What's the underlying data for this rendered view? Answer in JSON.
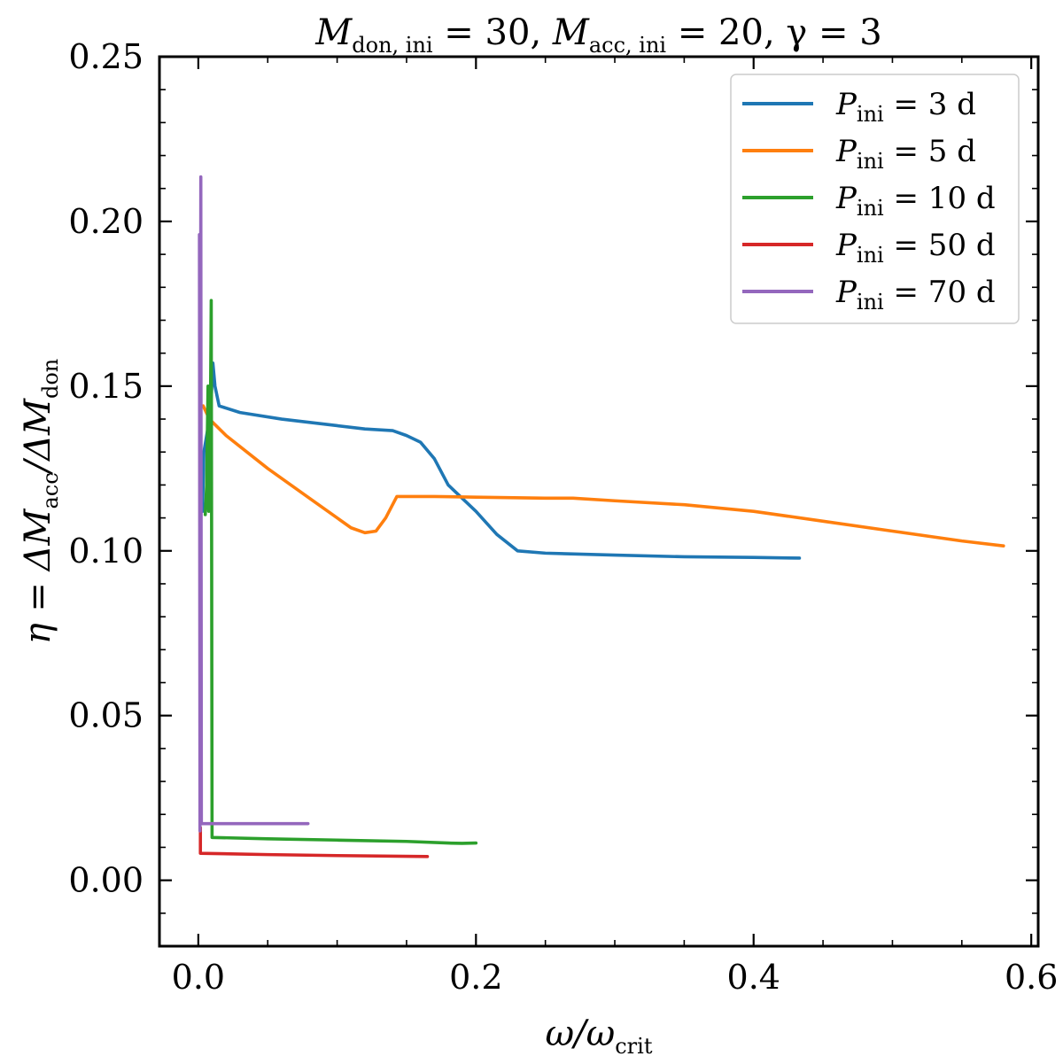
{
  "chart_data": {
    "type": "line",
    "title": {
      "mdon_symbol": "M",
      "mdon_sub": "don, ini",
      "mdon_value": " = 30, ",
      "macc_symbol": "M",
      "macc_sub": "acc, ini",
      "macc_value": " = 20, ",
      "gamma_text": "γ = 3"
    },
    "xlabel": {
      "prefix": "ω/ω",
      "sub": "crit"
    },
    "ylabel": {
      "part1": "η = ΔM",
      "sub1": "acc",
      "part2": "/ΔM",
      "sub2": "don"
    },
    "xlim": [
      -0.028,
      0.605
    ],
    "ylim": [
      -0.02,
      0.25
    ],
    "xticks": [
      {
        "value": 0.0,
        "label": "0.0"
      },
      {
        "value": 0.2,
        "label": "0.2"
      },
      {
        "value": 0.4,
        "label": "0.4"
      },
      {
        "value": 0.6,
        "label": "0.6"
      }
    ],
    "yticks": [
      {
        "value": 0.0,
        "label": "0.00"
      },
      {
        "value": 0.05,
        "label": "0.05"
      },
      {
        "value": 0.1,
        "label": "0.10"
      },
      {
        "value": 0.15,
        "label": "0.15"
      },
      {
        "value": 0.2,
        "label": "0.20"
      },
      {
        "value": 0.25,
        "label": "0.25"
      }
    ],
    "legend_position": "top-right",
    "series": [
      {
        "name": "P_ini = 3 d",
        "legend_symbol": "P",
        "legend_sub": "ini",
        "legend_value": " = 3 d",
        "color": "#1f77b4",
        "points": [
          [
            0.003,
            0.112
          ],
          [
            0.004,
            0.13
          ],
          [
            0.006,
            0.135
          ],
          [
            0.008,
            0.14
          ],
          [
            0.0095,
            0.148
          ],
          [
            0.0105,
            0.157
          ],
          [
            0.012,
            0.15
          ],
          [
            0.015,
            0.144
          ],
          [
            0.03,
            0.142
          ],
          [
            0.06,
            0.14
          ],
          [
            0.1,
            0.138
          ],
          [
            0.12,
            0.137
          ],
          [
            0.14,
            0.1365
          ],
          [
            0.15,
            0.135
          ],
          [
            0.16,
            0.133
          ],
          [
            0.17,
            0.128
          ],
          [
            0.18,
            0.12
          ],
          [
            0.2,
            0.112
          ],
          [
            0.215,
            0.105
          ],
          [
            0.23,
            0.1
          ],
          [
            0.25,
            0.0993
          ],
          [
            0.3,
            0.0987
          ],
          [
            0.35,
            0.0982
          ],
          [
            0.4,
            0.098
          ],
          [
            0.433,
            0.0978
          ]
        ]
      },
      {
        "name": "P_ini = 5 d",
        "legend_symbol": "P",
        "legend_sub": "ini",
        "legend_value": " = 5 d",
        "color": "#ff7f0e",
        "points": [
          [
            0.0035,
            0.144
          ],
          [
            0.008,
            0.14
          ],
          [
            0.02,
            0.135
          ],
          [
            0.05,
            0.125
          ],
          [
            0.08,
            0.116
          ],
          [
            0.1,
            0.11
          ],
          [
            0.11,
            0.107
          ],
          [
            0.12,
            0.1055
          ],
          [
            0.128,
            0.106
          ],
          [
            0.135,
            0.11
          ],
          [
            0.143,
            0.1165
          ],
          [
            0.17,
            0.1165
          ],
          [
            0.2,
            0.1163
          ],
          [
            0.25,
            0.116
          ],
          [
            0.27,
            0.116
          ],
          [
            0.3,
            0.1152
          ],
          [
            0.35,
            0.114
          ],
          [
            0.4,
            0.112
          ],
          [
            0.45,
            0.109
          ],
          [
            0.5,
            0.106
          ],
          [
            0.55,
            0.103
          ],
          [
            0.58,
            0.1015
          ]
        ]
      },
      {
        "name": "P_ini = 10 d",
        "legend_symbol": "P",
        "legend_sub": "ini",
        "legend_value": " = 10 d",
        "color": "#2ca02c",
        "points": [
          [
            0.005,
            0.111
          ],
          [
            0.006,
            0.12
          ],
          [
            0.007,
            0.15
          ],
          [
            0.0075,
            0.112
          ],
          [
            0.0085,
            0.13
          ],
          [
            0.009,
            0.158
          ],
          [
            0.0093,
            0.176
          ],
          [
            0.0096,
            0.1
          ],
          [
            0.0099,
            0.013
          ],
          [
            0.05,
            0.0126
          ],
          [
            0.1,
            0.0122
          ],
          [
            0.15,
            0.0118
          ],
          [
            0.18,
            0.0113
          ],
          [
            0.19,
            0.0112
          ],
          [
            0.2,
            0.0113
          ]
        ]
      },
      {
        "name": "P_ini = 50 d",
        "legend_symbol": "P",
        "legend_sub": "ini",
        "legend_value": " = 50 d",
        "color": "#d62728",
        "points": [
          [
            0.0015,
            0.016
          ],
          [
            0.0015,
            0.0082
          ],
          [
            0.05,
            0.0078
          ],
          [
            0.1,
            0.0075
          ],
          [
            0.165,
            0.0072
          ]
        ]
      },
      {
        "name": "P_ini = 70 d",
        "legend_symbol": "P",
        "legend_sub": "ini",
        "legend_value": " = 70 d",
        "color": "#9467bd",
        "points": [
          [
            0.0008,
            0.196
          ],
          [
            0.0012,
            0.015
          ],
          [
            0.0018,
            0.2135
          ],
          [
            0.0022,
            0.0172
          ],
          [
            0.04,
            0.0172
          ],
          [
            0.079,
            0.0172
          ]
        ]
      }
    ]
  }
}
